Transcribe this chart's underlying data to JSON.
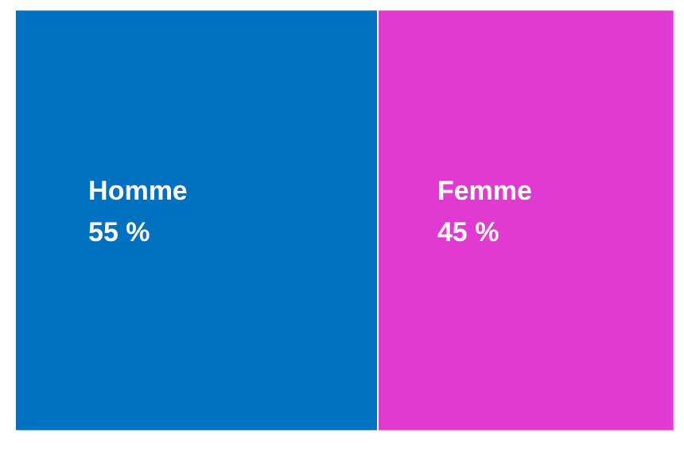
{
  "chart_data": {
    "type": "other",
    "categories": [
      "Homme",
      "Femme"
    ],
    "values": [
      55,
      45
    ],
    "colors": [
      "#0070c0",
      "#e03ad0"
    ],
    "value_labels": [
      "55 %",
      "45 %"
    ]
  }
}
